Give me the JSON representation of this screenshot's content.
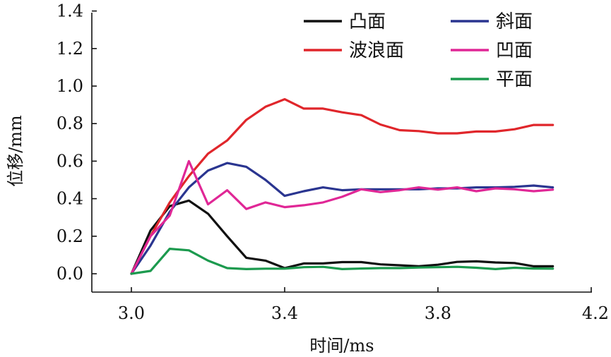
{
  "chart_data": {
    "type": "line",
    "xlabel": "时间/ms",
    "ylabel": "位移/mm",
    "xlim": [
      2.85,
      4.2
    ],
    "ylim": [
      -0.1,
      1.4
    ],
    "xticks": [
      3.0,
      3.4,
      3.8,
      4.2
    ],
    "xtick_labels": [
      "3.0",
      "3.4",
      "3.8",
      "4.2"
    ],
    "yticks": [
      0.0,
      0.2,
      0.4,
      0.6,
      0.8,
      1.0,
      1.2,
      1.4
    ],
    "ytick_labels": [
      "0.0",
      "0.2",
      "0.4",
      "0.6",
      "0.8",
      "1.0",
      "1.2",
      "1.4"
    ],
    "grid": false,
    "legend": "top-right",
    "x": [
      3.0,
      3.05,
      3.1,
      3.15,
      3.2,
      3.25,
      3.3,
      3.35,
      3.4,
      3.45,
      3.5,
      3.55,
      3.6,
      3.65,
      3.7,
      3.75,
      3.8,
      3.85,
      3.9,
      3.95,
      4.0,
      4.05,
      4.1
    ],
    "series": [
      {
        "name": "凸面",
        "color": "#111111",
        "values": [
          0.0,
          0.23,
          0.36,
          0.39,
          0.32,
          0.2,
          0.085,
          0.07,
          0.03,
          0.055,
          0.055,
          0.062,
          0.062,
          0.05,
          0.045,
          0.04,
          0.048,
          0.063,
          0.066,
          0.06,
          0.057,
          0.04,
          0.04
        ]
      },
      {
        "name": "斜面",
        "color": "#2a3590",
        "values": [
          0.0,
          0.15,
          0.33,
          0.46,
          0.55,
          0.59,
          0.57,
          0.5,
          0.415,
          0.44,
          0.46,
          0.445,
          0.45,
          0.45,
          0.45,
          0.45,
          0.455,
          0.455,
          0.46,
          0.46,
          0.463,
          0.47,
          0.46
        ]
      },
      {
        "name": "波浪面",
        "color": "#e0262b",
        "values": [
          0.0,
          0.2,
          0.38,
          0.52,
          0.64,
          0.71,
          0.82,
          0.89,
          0.93,
          0.88,
          0.88,
          0.86,
          0.845,
          0.795,
          0.765,
          0.76,
          0.748,
          0.748,
          0.758,
          0.758,
          0.77,
          0.793,
          0.793
        ]
      },
      {
        "name": "凹面",
        "color": "#e02796",
        "values": [
          0.0,
          0.2,
          0.31,
          0.6,
          0.37,
          0.445,
          0.345,
          0.38,
          0.355,
          0.365,
          0.38,
          0.41,
          0.45,
          0.435,
          0.445,
          0.46,
          0.448,
          0.46,
          0.44,
          0.455,
          0.45,
          0.44,
          0.448
        ]
      },
      {
        "name": "平面",
        "color": "#1c9a4e",
        "values": [
          0.0,
          0.015,
          0.133,
          0.125,
          0.07,
          0.03,
          0.025,
          0.027,
          0.027,
          0.035,
          0.037,
          0.025,
          0.028,
          0.03,
          0.03,
          0.033,
          0.035,
          0.037,
          0.032,
          0.025,
          0.032,
          0.028,
          0.027
        ]
      }
    ]
  }
}
